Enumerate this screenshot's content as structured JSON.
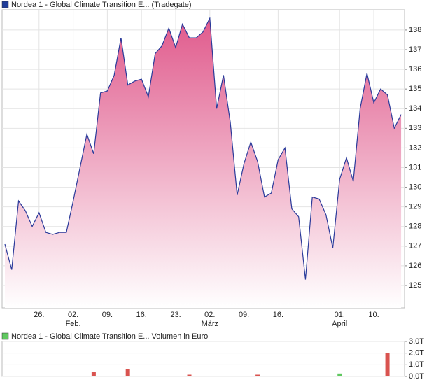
{
  "chart_data": [
    {
      "type": "area",
      "title": "Nordea 1 - Global Climate Transition E... (Tradegate)",
      "legend_color": "#1f3c99",
      "categories": [
        null,
        null,
        null,
        null,
        null,
        "26.",
        null,
        null,
        null,
        null,
        "02.",
        null,
        null,
        null,
        null,
        "09.",
        null,
        null,
        null,
        null,
        "16.",
        null,
        null,
        null,
        null,
        "23.",
        null,
        null,
        null,
        null,
        "02.",
        null,
        null,
        null,
        null,
        "09.",
        null,
        null,
        null,
        null,
        "16.",
        null,
        null,
        null,
        null,
        null,
        null,
        null,
        null,
        "01.",
        null,
        null,
        null,
        null,
        "10.",
        null,
        null,
        null,
        null
      ],
      "sub_categories": [
        null,
        null,
        null,
        null,
        null,
        null,
        null,
        null,
        null,
        null,
        "Feb.",
        null,
        null,
        null,
        null,
        null,
        null,
        null,
        null,
        null,
        null,
        null,
        null,
        null,
        null,
        null,
        null,
        null,
        null,
        null,
        "März",
        null,
        null,
        null,
        null,
        null,
        null,
        null,
        null,
        null,
        null,
        null,
        null,
        null,
        null,
        null,
        null,
        null,
        null,
        "April",
        null,
        null,
        null,
        null,
        null,
        null,
        null,
        null,
        null
      ],
      "series": [
        {
          "name": "Nordea 1 - Global Climate Transition E... (Tradegate)",
          "color": "#2a3a9a",
          "fill_top": "#e05a8c",
          "fill_bottom": "#ffffff",
          "values": [
            127.1,
            125.8,
            129.3,
            128.8,
            128.0,
            128.7,
            127.7,
            127.6,
            127.7,
            127.7,
            129.3,
            131.0,
            132.7,
            131.7,
            134.8,
            134.9,
            135.7,
            137.6,
            135.2,
            135.4,
            135.5,
            134.6,
            136.8,
            137.2,
            138.1,
            137.1,
            138.3,
            137.6,
            137.6,
            137.9,
            138.6,
            134.0,
            135.7,
            133.3,
            129.6,
            131.2,
            132.3,
            131.3,
            129.5,
            129.7,
            131.4,
            132.0,
            128.9,
            128.5,
            125.3,
            129.5,
            129.4,
            128.6,
            126.9,
            130.4,
            131.5,
            130.3,
            134.0,
            135.8,
            134.3,
            135.0,
            134.7,
            133.0,
            133.7
          ]
        }
      ],
      "ylim": [
        123.86,
        139.03
      ],
      "yticks": [
        125,
        126,
        127,
        128,
        129,
        130,
        131,
        132,
        133,
        134,
        135,
        136,
        137,
        138
      ],
      "grid": true
    },
    {
      "type": "bar",
      "title": "Nordea 1 - Global Climate Transition E... Volumen in Euro",
      "legend_color": "#5fc85f",
      "values": [
        0,
        0,
        0,
        0,
        0,
        0,
        0,
        0,
        0,
        0,
        0,
        0,
        0,
        0.4,
        0,
        0,
        0,
        0,
        0.6,
        0,
        0,
        0,
        0,
        0,
        0,
        0,
        0,
        0.15,
        0,
        0,
        0,
        0,
        0,
        0,
        0,
        0,
        0,
        0.15,
        0,
        0,
        0,
        0,
        0,
        0,
        0,
        0,
        0,
        0,
        0,
        0.25,
        0,
        0,
        0,
        0,
        0,
        0,
        2.0,
        0,
        0
      ],
      "colors": [
        "#d9534f",
        "#d9534f",
        "#d9534f",
        "#d9534f",
        "#d9534f",
        "#d9534f",
        "#d9534f",
        "#d9534f",
        "#d9534f",
        "#d9534f",
        "#d9534f",
        "#d9534f",
        "#d9534f",
        "#d9534f",
        "#d9534f",
        "#d9534f",
        "#d9534f",
        "#d9534f",
        "#d9534f",
        "#d9534f",
        "#d9534f",
        "#d9534f",
        "#d9534f",
        "#d9534f",
        "#d9534f",
        "#d9534f",
        "#d9534f",
        "#d9534f",
        "#d9534f",
        "#d9534f",
        "#d9534f",
        "#d9534f",
        "#d9534f",
        "#d9534f",
        "#d9534f",
        "#d9534f",
        "#d9534f",
        "#d9534f",
        "#d9534f",
        "#d9534f",
        "#d9534f",
        "#d9534f",
        "#d9534f",
        "#d9534f",
        "#d9534f",
        "#d9534f",
        "#d9534f",
        "#d9534f",
        "#d9534f",
        "#5fc85f",
        "#d9534f",
        "#d9534f",
        "#d9534f",
        "#d9534f",
        "#d9534f",
        "#d9534f",
        "#d9534f",
        "#d9534f",
        "#d9534f"
      ],
      "ylim": [
        0,
        3
      ],
      "yticks": [
        {
          "value": 0,
          "label": "0,0T"
        },
        {
          "value": 1,
          "label": "1,0T"
        },
        {
          "value": 2,
          "label": "2,0T"
        },
        {
          "value": 3,
          "label": "3,0T"
        }
      ],
      "grid": true
    }
  ]
}
